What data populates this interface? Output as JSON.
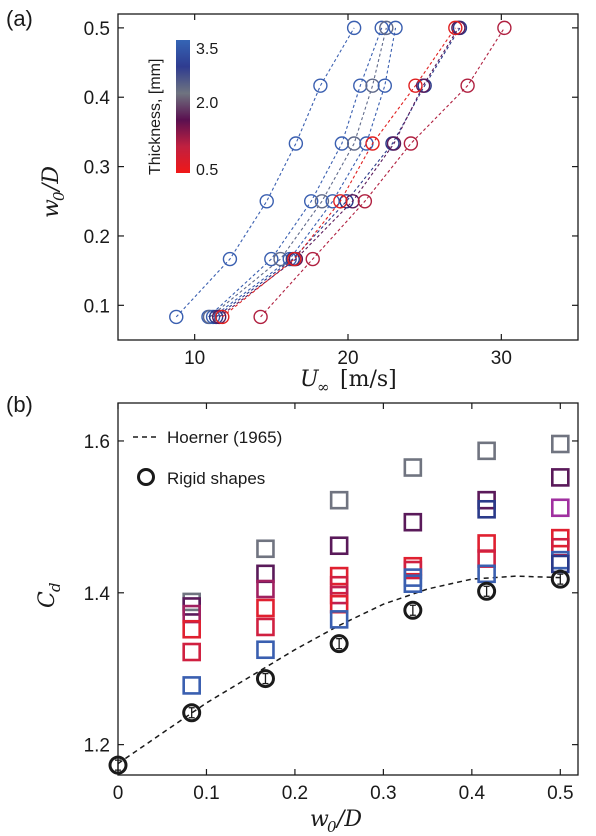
{
  "panel_a_label": "(a)",
  "panel_b_label": "(b)",
  "colors": {
    "blue": "#3a5fb0",
    "gray": "#707480",
    "purple": "#5a1a5a",
    "red": "#e02030",
    "black": "#1a1a1a"
  },
  "chart_data": [
    {
      "type": "scatter",
      "panel": "(a)",
      "xlabel_main": "U",
      "xlabel_sub": "∞",
      "xlabel_unit": "[m/s]",
      "ylabel_main": "w",
      "ylabel_sub": "0",
      "ylabel_rest": "/D",
      "xlim": [
        5,
        35
      ],
      "ylim": [
        0.05,
        0.52
      ],
      "xticks": [
        10,
        20,
        30
      ],
      "yticks": [
        0.1,
        0.2,
        0.3,
        0.4,
        0.5
      ],
      "grid": false,
      "colorbar": {
        "title": "Thickness, [mm]",
        "ticks": [
          "3.5",
          "2.0",
          "0.5"
        ],
        "colors": [
          "#3565b5",
          "#2f3c90",
          "#6f7480",
          "#5a1050",
          "#c02040",
          "#f01818"
        ]
      },
      "series": [
        {
          "color": "#3a5fb0",
          "x": [
            8.8,
            12.3,
            14.7,
            16.6,
            18.2,
            20.4
          ],
          "y": [
            0.0833,
            0.1667,
            0.25,
            0.3333,
            0.4167,
            0.5
          ]
        },
        {
          "color": "#3a5fb0",
          "x": [
            10.9,
            15.0,
            17.6,
            19.6,
            20.8,
            22.2
          ],
          "y": [
            0.0833,
            0.1667,
            0.25,
            0.3333,
            0.4167,
            0.5
          ]
        },
        {
          "color": "#606a8a",
          "x": [
            11.0,
            15.6,
            18.3,
            20.4,
            21.6,
            22.5
          ],
          "y": [
            0.0833,
            0.1667,
            0.25,
            0.3333,
            0.4167,
            0.5
          ]
        },
        {
          "color": "#3a5fb0",
          "x": [
            11.2,
            16.2,
            19.0,
            21.2,
            22.4,
            23.1
          ],
          "y": [
            0.0833,
            0.1667,
            0.25,
            0.3333,
            0.4167,
            0.5
          ]
        },
        {
          "color": "#2a3a8a",
          "x": [
            11.4,
            16.4,
            19.9,
            22.9,
            25.0,
            27.3
          ],
          "y": [
            0.0833,
            0.1667,
            0.25,
            0.3333,
            0.4167,
            0.5
          ]
        },
        {
          "color": "#5a1a5a",
          "x": [
            11.6,
            16.6,
            20.3,
            23.0,
            24.9,
            27.2
          ],
          "y": [
            0.0833,
            0.1667,
            0.25,
            0.3333,
            0.4167,
            0.5
          ]
        },
        {
          "color": "#e02020",
          "x": [
            11.8,
            16.5,
            19.5,
            21.6,
            24.4,
            27.0
          ],
          "y": [
            0.0833,
            0.1667,
            0.25,
            0.3333,
            0.4167,
            0.5
          ]
        },
        {
          "color": "#b02040",
          "x": [
            14.3,
            17.7,
            21.1,
            24.1,
            27.8,
            30.2
          ],
          "y": [
            0.0833,
            0.1667,
            0.25,
            0.3333,
            0.4167,
            0.5
          ]
        }
      ]
    },
    {
      "type": "scatter",
      "panel": "(b)",
      "xlabel_main": "w",
      "xlabel_sub": "0",
      "xlabel_rest": "/D",
      "ylabel_main": "C",
      "ylabel_sub": "d",
      "xlim": [
        0,
        0.52
      ],
      "ylim": [
        1.16,
        1.65
      ],
      "xticks": [
        0,
        0.1,
        0.2,
        0.3,
        0.4,
        0.5
      ],
      "xtick_labels": [
        "0",
        "0.1",
        "0.2",
        "0.3",
        "0.4",
        "0.5"
      ],
      "yticks": [
        1.2,
        1.4,
        1.6
      ],
      "grid": false,
      "legend": {
        "placement": "top-left",
        "entries": [
          "Hoerner (1965)",
          "Rigid shapes"
        ]
      },
      "hoerner_curve": {
        "x": [
          0,
          0.05,
          0.1,
          0.15,
          0.2,
          0.25,
          0.3,
          0.35,
          0.4,
          0.45,
          0.5
        ],
        "y": [
          1.175,
          1.215,
          1.255,
          1.29,
          1.325,
          1.357,
          1.385,
          1.405,
          1.418,
          1.422,
          1.42
        ]
      },
      "rigid_shapes": {
        "x": [
          0,
          0.0833,
          0.1667,
          0.25,
          0.3333,
          0.4167,
          0.5
        ],
        "y": [
          1.173,
          1.242,
          1.287,
          1.333,
          1.377,
          1.402,
          1.418
        ]
      },
      "flexible_squares": [
        {
          "x": 0.0833,
          "values": [
            1.388,
            1.382,
            1.372,
            1.352,
            1.322,
            1.278
          ],
          "colors": [
            "#707480",
            "#5a1a5a",
            "#a02060",
            "#e02030",
            "#d02040",
            "#3a5fb0"
          ]
        },
        {
          "x": 0.1667,
          "values": [
            1.458,
            1.425,
            1.405,
            1.38,
            1.355,
            1.325
          ],
          "colors": [
            "#707480",
            "#5a1a5a",
            "#a02060",
            "#e02030",
            "#d02040",
            "#3a5fb0"
          ]
        },
        {
          "x": 0.25,
          "values": [
            1.522,
            1.462,
            1.422,
            1.41,
            1.397,
            1.385,
            1.365
          ],
          "colors": [
            "#707480",
            "#5a1a5a",
            "#e02030",
            "#d02040",
            "#c02050",
            "#e02030",
            "#3a5fb0"
          ]
        },
        {
          "x": 0.3333,
          "values": [
            1.565,
            1.493,
            1.435,
            1.43,
            1.42,
            1.412
          ],
          "colors": [
            "#707480",
            "#5a1a5a",
            "#e02030",
            "#d02040",
            "#3a5fb0",
            "#3a5fb0"
          ]
        },
        {
          "x": 0.4167,
          "values": [
            1.587,
            1.522,
            1.51,
            1.465,
            1.445,
            1.425
          ],
          "colors": [
            "#707480",
            "#5a1a5a",
            "#2a3a8a",
            "#e02030",
            "#d02040",
            "#3a5fb0"
          ]
        },
        {
          "x": 0.5,
          "values": [
            1.596,
            1.552,
            1.512,
            1.472,
            1.46,
            1.443,
            1.438
          ],
          "colors": [
            "#707480",
            "#5a1a5a",
            "#a030a0",
            "#e02030",
            "#d02040",
            "#3a5fb0",
            "#2a3a8a"
          ]
        }
      ]
    }
  ]
}
